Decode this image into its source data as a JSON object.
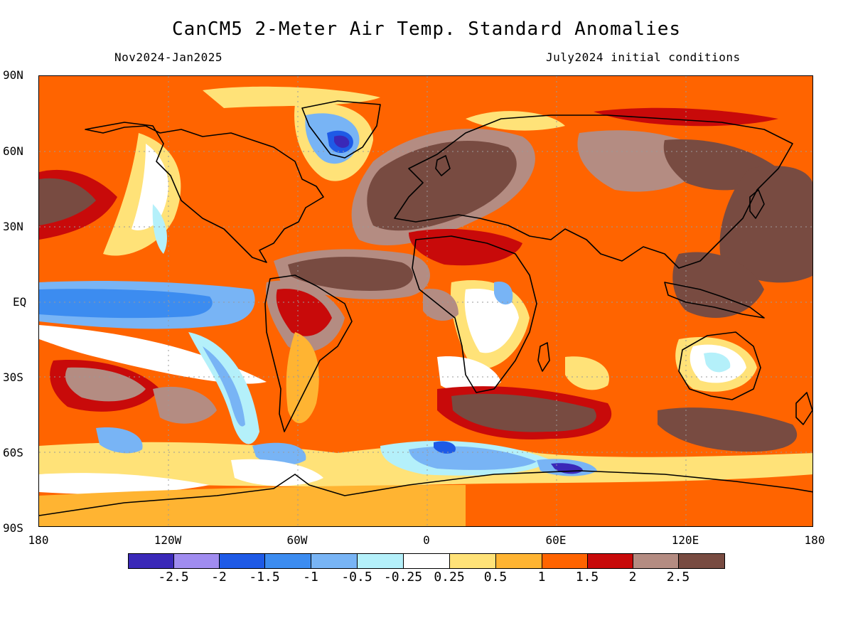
{
  "header": {
    "title": "CanCM5 2-Meter Air Temp. Standard Anomalies",
    "period": "Nov2024-Jan2025",
    "init": "July2024 initial conditions"
  },
  "axes": {
    "y_labels": [
      "90N",
      "60N",
      "30N",
      "EQ",
      "30S",
      "60S",
      "90S"
    ],
    "x_labels": [
      "180",
      "120W",
      "60W",
      "0",
      "60E",
      "120E",
      "180"
    ]
  },
  "legend": {
    "labels": [
      "-2.5",
      "-2",
      "-1.5",
      "-1",
      "-0.5",
      "-0.25",
      "0.25",
      "0.5",
      "1",
      "1.5",
      "2",
      "2.5"
    ],
    "colors": [
      "#3a28b8",
      "#a08cf0",
      "#1e5ae6",
      "#3c8cf0",
      "#78b4f5",
      "#b4f0fa",
      "#ffffff",
      "#ffe278",
      "#ffb432",
      "#ff6400",
      "#c80a0a",
      "#b48c82",
      "#784b41"
    ]
  },
  "map": {
    "projection": "equirectangular",
    "lon_range": [
      -180,
      180
    ],
    "lat_range": [
      -90,
      90
    ],
    "background_color": "#ff6400"
  }
}
